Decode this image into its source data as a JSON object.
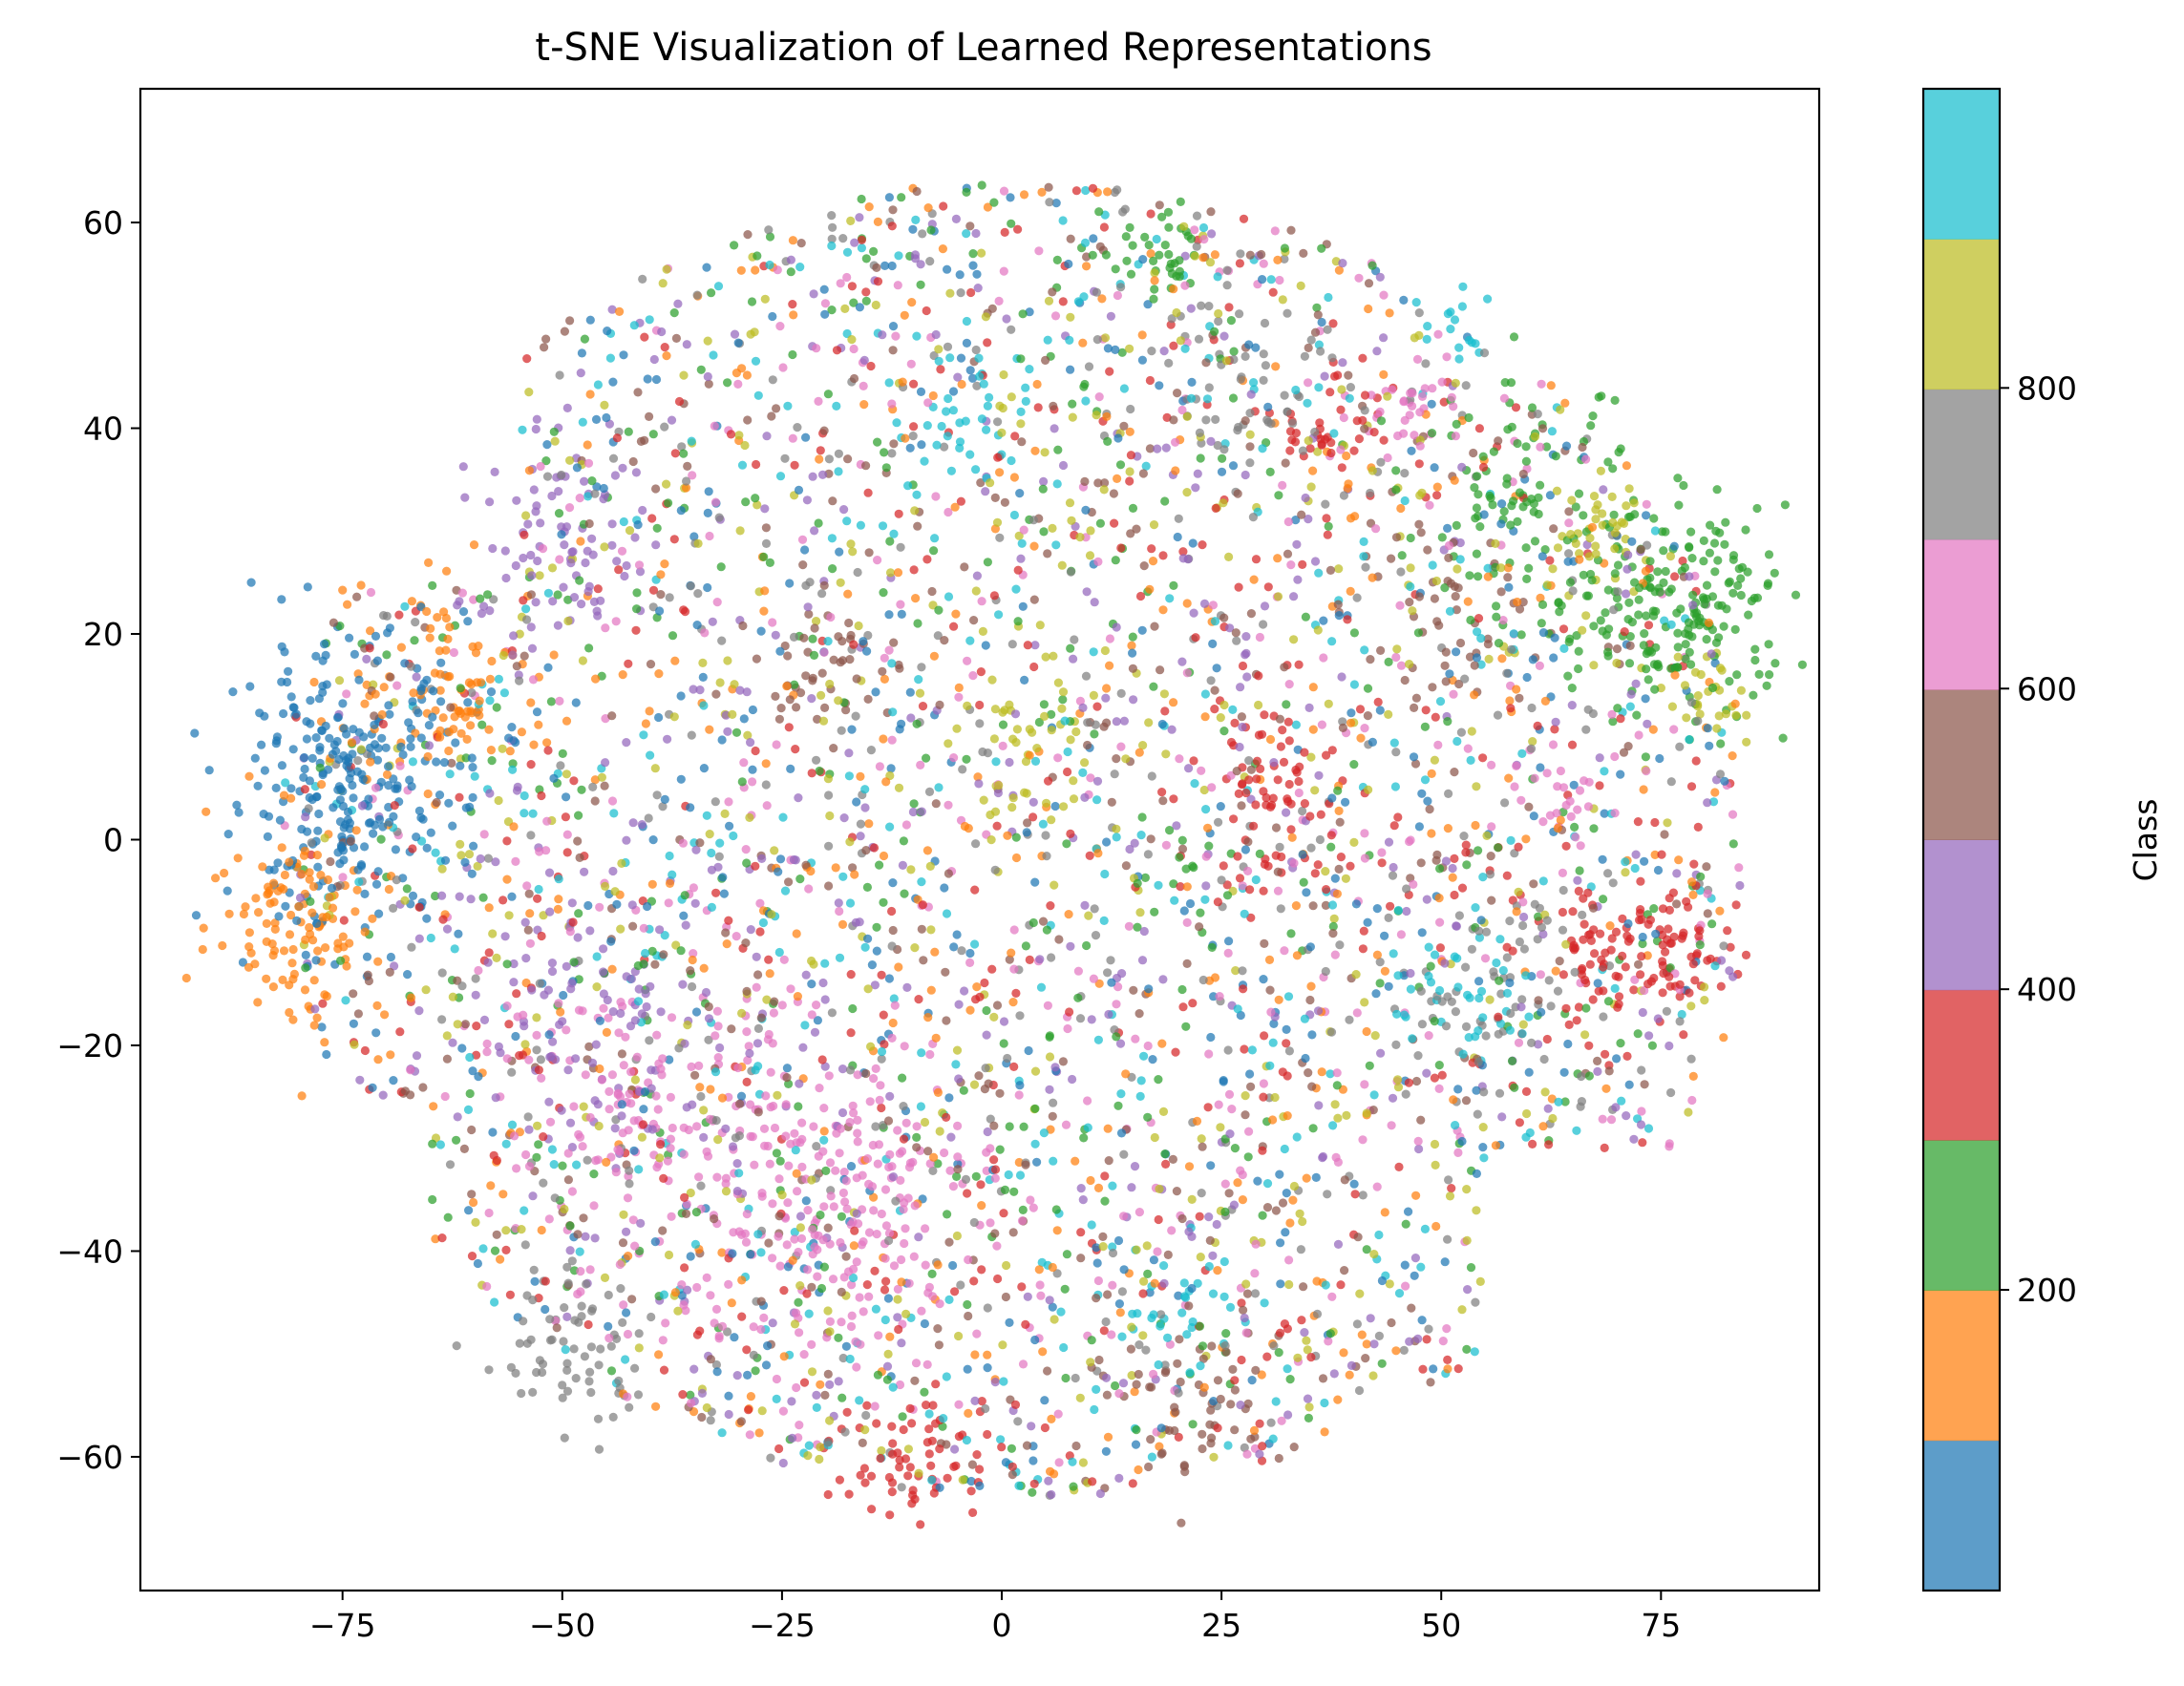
{
  "chart_data": {
    "type": "scatter",
    "title": "t-SNE Visualization of Learned Representations",
    "xlabel": "",
    "ylabel": "",
    "xlim": [
      -98,
      93
    ],
    "ylim": [
      -73,
      73
    ],
    "xticks": [
      -75,
      -50,
      -25,
      0,
      25,
      50,
      75
    ],
    "yticks": [
      -60,
      -40,
      -20,
      0,
      20,
      40,
      60
    ],
    "grid": false,
    "colormap": "tab10",
    "colorbar": {
      "label": "Class",
      "range": [
        0,
        999
      ],
      "ticks": [
        200,
        400,
        600,
        800
      ],
      "colors": [
        "#1f77b4",
        "#ff7f0e",
        "#2ca02c",
        "#d62728",
        "#9467bd",
        "#8c564b",
        "#e377c2",
        "#7f7f7f",
        "#bcbd22",
        "#17becf"
      ]
    },
    "clusters": [
      {
        "class_bin": 0,
        "center": [
          -75,
          5
        ],
        "spread": [
          7,
          7
        ],
        "count": 260
      },
      {
        "class_bin": 1,
        "center": [
          -80,
          -8
        ],
        "spread": [
          5,
          5
        ],
        "count": 110
      },
      {
        "class_bin": 1,
        "center": [
          -62,
          15
        ],
        "spread": [
          6,
          5
        ],
        "count": 90
      },
      {
        "class_bin": 2,
        "center": [
          78,
          22
        ],
        "spread": [
          6,
          5
        ],
        "count": 180
      },
      {
        "class_bin": 2,
        "center": [
          60,
          32
        ],
        "spread": [
          6,
          6
        ],
        "count": 90
      },
      {
        "class_bin": 2,
        "center": [
          18,
          56
        ],
        "spread": [
          3,
          2
        ],
        "count": 30
      },
      {
        "class_bin": 3,
        "center": [
          72,
          -12
        ],
        "spread": [
          6,
          4
        ],
        "count": 120
      },
      {
        "class_bin": 3,
        "center": [
          32,
          5
        ],
        "spread": [
          6,
          5
        ],
        "count": 80
      },
      {
        "class_bin": 3,
        "center": [
          -10,
          -60
        ],
        "spread": [
          5,
          3
        ],
        "count": 60
      },
      {
        "class_bin": 3,
        "center": [
          37,
          40
        ],
        "spread": [
          3,
          2
        ],
        "count": 30
      },
      {
        "class_bin": 4,
        "center": [
          -45,
          -18
        ],
        "spread": [
          7,
          7
        ],
        "count": 90
      },
      {
        "class_bin": 4,
        "center": [
          -50,
          28
        ],
        "spread": [
          6,
          5
        ],
        "count": 70
      },
      {
        "class_bin": 5,
        "center": [
          -20,
          17
        ],
        "spread": [
          4,
          3
        ],
        "count": 40
      },
      {
        "class_bin": 5,
        "center": [
          20,
          -55
        ],
        "spread": [
          6,
          4
        ],
        "count": 50
      },
      {
        "class_bin": 5,
        "center": [
          50,
          22
        ],
        "spread": [
          5,
          5
        ],
        "count": 40
      },
      {
        "class_bin": 6,
        "center": [
          -20,
          -35
        ],
        "spread": [
          9,
          8
        ],
        "count": 220
      },
      {
        "class_bin": 6,
        "center": [
          -40,
          -25
        ],
        "spread": [
          8,
          8
        ],
        "count": 120
      },
      {
        "class_bin": 6,
        "center": [
          46,
          42
        ],
        "spread": [
          3,
          2
        ],
        "count": 30
      },
      {
        "class_bin": 6,
        "center": [
          65,
          4
        ],
        "spread": [
          3,
          3
        ],
        "count": 25
      },
      {
        "class_bin": 7,
        "center": [
          -50,
          -50
        ],
        "spread": [
          5,
          4
        ],
        "count": 60
      },
      {
        "class_bin": 7,
        "center": [
          55,
          -15
        ],
        "spread": [
          6,
          6
        ],
        "count": 60
      },
      {
        "class_bin": 7,
        "center": [
          28,
          45
        ],
        "spread": [
          6,
          5
        ],
        "count": 50
      },
      {
        "class_bin": 8,
        "center": [
          68,
          28
        ],
        "spread": [
          4,
          4
        ],
        "count": 40
      },
      {
        "class_bin": 8,
        "center": [
          3,
          10
        ],
        "spread": [
          5,
          4
        ],
        "count": 40
      },
      {
        "class_bin": 8,
        "center": [
          80,
          14
        ],
        "spread": [
          3,
          2
        ],
        "count": 25
      },
      {
        "class_bin": 9,
        "center": [
          -5,
          40
        ],
        "spread": [
          6,
          4
        ],
        "count": 40
      },
      {
        "class_bin": 9,
        "center": [
          52,
          -15
        ],
        "spread": [
          4,
          3
        ],
        "count": 30
      },
      {
        "class_bin": 9,
        "center": [
          52,
          50
        ],
        "spread": [
          2,
          2
        ],
        "count": 15
      },
      {
        "class_bin": 9,
        "center": [
          20,
          -45
        ],
        "spread": [
          4,
          3
        ],
        "count": 30
      }
    ],
    "background_points": 4200
  }
}
